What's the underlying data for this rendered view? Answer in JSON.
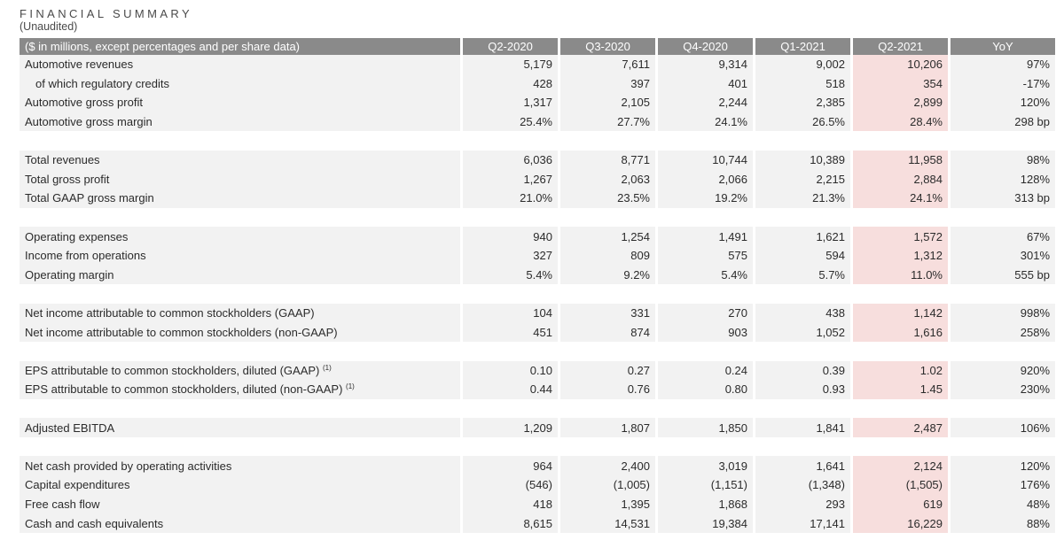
{
  "title": "FINANCIAL SUMMARY",
  "subtitle": "(Unaudited)",
  "header": {
    "label": "($ in millions, except percentages and per share data)",
    "columns": [
      "Q2-2020",
      "Q3-2020",
      "Q4-2020",
      "Q1-2021",
      "Q2-2021",
      "YoY"
    ]
  },
  "colors": {
    "header_bg": "#8a8a8a",
    "row_bg": "#f2f2f2",
    "highlight_bg": "#f7dedd"
  },
  "footnote_mark": "(1)",
  "rows": [
    {
      "label": "Automotive revenues",
      "values": [
        "5,179",
        "7,611",
        "9,314",
        "9,002",
        "10,206",
        "97%"
      ]
    },
    {
      "label": "of which regulatory credits",
      "values": [
        "428",
        "397",
        "401",
        "518",
        "354",
        "-17%"
      ]
    },
    {
      "label": "Automotive gross profit",
      "values": [
        "1,317",
        "2,105",
        "2,244",
        "2,385",
        "2,899",
        "120%"
      ]
    },
    {
      "label": "Automotive gross margin",
      "values": [
        "25.4%",
        "27.7%",
        "24.1%",
        "26.5%",
        "28.4%",
        "298 bp"
      ]
    },
    {
      "label": "Total revenues",
      "values": [
        "6,036",
        "8,771",
        "10,744",
        "10,389",
        "11,958",
        "98%"
      ]
    },
    {
      "label": "Total gross profit",
      "values": [
        "1,267",
        "2,063",
        "2,066",
        "2,215",
        "2,884",
        "128%"
      ]
    },
    {
      "label": "Total GAAP gross margin",
      "values": [
        "21.0%",
        "23.5%",
        "19.2%",
        "21.3%",
        "24.1%",
        "313 bp"
      ]
    },
    {
      "label": "Operating expenses",
      "values": [
        "940",
        "1,254",
        "1,491",
        "1,621",
        "1,572",
        "67%"
      ]
    },
    {
      "label": "Income from operations",
      "values": [
        "327",
        "809",
        "575",
        "594",
        "1,312",
        "301%"
      ]
    },
    {
      "label": "Operating margin",
      "values": [
        "5.4%",
        "9.2%",
        "5.4%",
        "5.7%",
        "11.0%",
        "555 bp"
      ]
    },
    {
      "label": "Net income attributable to common stockholders (GAAP)",
      "values": [
        "104",
        "331",
        "270",
        "438",
        "1,142",
        "998%"
      ]
    },
    {
      "label": "Net income attributable to common stockholders (non-GAAP)",
      "values": [
        "451",
        "874",
        "903",
        "1,052",
        "1,616",
        "258%"
      ]
    },
    {
      "label": "EPS attributable to common stockholders, diluted (GAAP)",
      "values": [
        "0.10",
        "0.27",
        "0.24",
        "0.39",
        "1.02",
        "920%"
      ]
    },
    {
      "label": "EPS attributable to common stockholders, diluted (non-GAAP)",
      "values": [
        "0.44",
        "0.76",
        "0.80",
        "0.93",
        "1.45",
        "230%"
      ]
    },
    {
      "label": "Adjusted EBITDA",
      "values": [
        "1,209",
        "1,807",
        "1,850",
        "1,841",
        "2,487",
        "106%"
      ]
    },
    {
      "label": "Net cash provided by operating activities",
      "values": [
        "964",
        "2,400",
        "3,019",
        "1,641",
        "2,124",
        "120%"
      ]
    },
    {
      "label": "Capital expenditures",
      "values": [
        "(546)",
        "(1,005)",
        "(1,151)",
        "(1,348)",
        "(1,505)",
        "176%"
      ]
    },
    {
      "label": "Free cash flow",
      "values": [
        "418",
        "1,395",
        "1,868",
        "293",
        "619",
        "48%"
      ]
    },
    {
      "label": "Cash and cash equivalents",
      "values": [
        "8,615",
        "14,531",
        "19,384",
        "17,141",
        "16,229",
        "88%"
      ]
    }
  ]
}
